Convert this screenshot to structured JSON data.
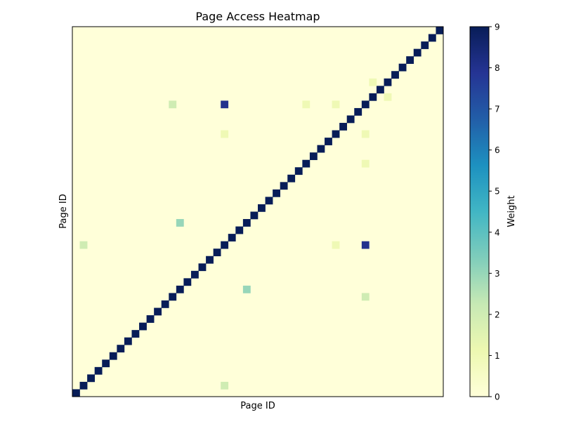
{
  "chart_data": {
    "type": "heatmap",
    "title": "Page Access Heatmap",
    "xlabel": "Page ID",
    "ylabel": "Page ID",
    "colorbar": {
      "label": "Weight",
      "min": 0,
      "max": 9,
      "ticks": [
        "0",
        "1",
        "2",
        "3",
        "4",
        "5",
        "6",
        "7",
        "8",
        "9"
      ]
    },
    "grid_size": 50,
    "default_value": 0,
    "x_tick_labels_shown": false,
    "y_tick_labels_shown": false,
    "colormap": [
      "#ffffd9",
      "#edf8b1",
      "#c7e9b4",
      "#7fcdbb",
      "#41b6c4",
      "#1d91c0",
      "#225ea8",
      "#253494",
      "#081d58"
    ],
    "diagonal_value": 9,
    "cells": [
      {
        "row": 1,
        "col": 20,
        "value": 2
      },
      {
        "row": 13,
        "col": 39,
        "value": 2
      },
      {
        "row": 14,
        "col": 23,
        "value": 3
      },
      {
        "row": 20,
        "col": 1,
        "value": 2
      },
      {
        "row": 20,
        "col": 35,
        "value": 1
      },
      {
        "row": 20,
        "col": 39,
        "value": 8
      },
      {
        "row": 23,
        "col": 14,
        "value": 3
      },
      {
        "row": 31,
        "col": 39,
        "value": 1
      },
      {
        "row": 35,
        "col": 20,
        "value": 1
      },
      {
        "row": 35,
        "col": 39,
        "value": 1
      },
      {
        "row": 39,
        "col": 13,
        "value": 2
      },
      {
        "row": 39,
        "col": 20,
        "value": 8
      },
      {
        "row": 39,
        "col": 31,
        "value": 1
      },
      {
        "row": 39,
        "col": 35,
        "value": 1
      },
      {
        "row": 40,
        "col": 42,
        "value": 1
      },
      {
        "row": 42,
        "col": 40,
        "value": 1
      }
    ]
  }
}
